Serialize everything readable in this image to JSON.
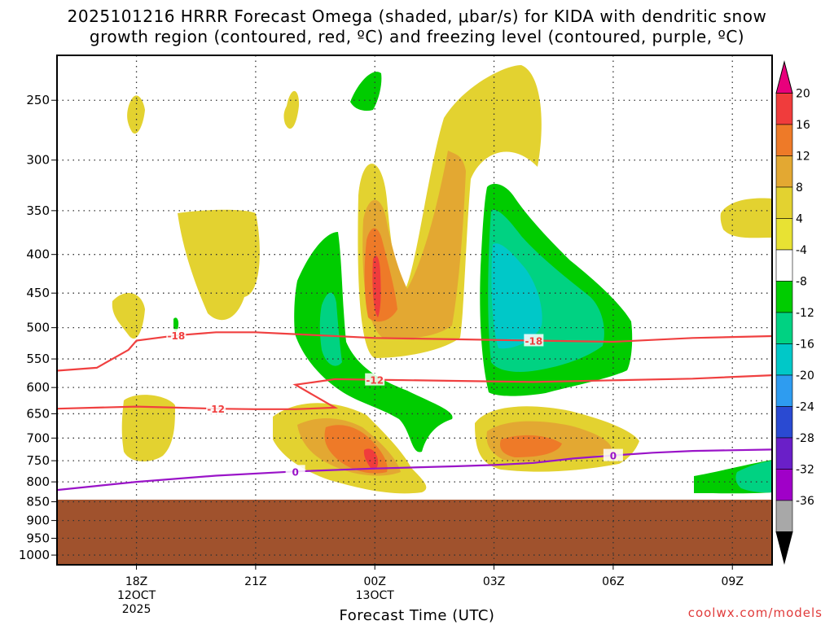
{
  "title_line1": "2025101216 HRRR Forecast Omega (shaded, μbar/s) for KIDA with dendritic snow",
  "title_line2": "growth region (contoured, red, ºC) and freezing level (contoured, purple, ºC)",
  "x_axis_label": "Forecast Time (UTC)",
  "credit": "coolwx.com/models",
  "chart_data": {
    "type": "heatmap",
    "x_ticks": [
      {
        "hour": 18,
        "lines": [
          "18Z",
          "12OCT",
          "2025"
        ]
      },
      {
        "hour": 21,
        "lines": [
          "21Z"
        ]
      },
      {
        "hour": 24,
        "lines": [
          "00Z",
          "13OCT"
        ]
      },
      {
        "hour": 27,
        "lines": [
          "03Z"
        ]
      },
      {
        "hour": 30,
        "lines": [
          "06Z"
        ]
      },
      {
        "hour": 33,
        "lines": [
          "09Z"
        ]
      }
    ],
    "xlim": [
      16,
      34
    ],
    "pressure_ticks": [
      250,
      300,
      350,
      400,
      450,
      500,
      550,
      600,
      650,
      700,
      750,
      800,
      850,
      900,
      950,
      1000
    ],
    "y_scale": "log-pressure",
    "colorbar": {
      "levels": [
        "20",
        "16",
        "12",
        "8",
        "4",
        "-4",
        "-8",
        "-12",
        "-16",
        "-20",
        "-24",
        "-28",
        "-32",
        "-36"
      ],
      "colors": [
        "#e8007c",
        "#f03c3c",
        "#ee7a28",
        "#e3a832",
        "#e3d230",
        "#e8e233",
        "#ffffff",
        "#00cc00",
        "#00d282",
        "#00c8c8",
        "#2e9cf0",
        "#2a4ad2",
        "#6a1fc8",
        "#a000c8",
        "#a8a8a8",
        "#000000"
      ]
    },
    "contours": [
      {
        "name": "dendritic -18C",
        "color": "#f04040",
        "label": "-18",
        "points": [
          [
            16,
            570
          ],
          [
            17,
            565
          ],
          [
            17.8,
            535
          ],
          [
            18,
            520
          ],
          [
            19,
            512
          ],
          [
            20,
            507
          ],
          [
            21,
            507
          ],
          [
            22,
            510
          ],
          [
            24,
            516
          ],
          [
            26,
            518
          ],
          [
            28,
            520
          ],
          [
            30,
            522
          ],
          [
            32,
            516
          ],
          [
            34,
            513
          ]
        ]
      },
      {
        "name": "dendritic -12C",
        "color": "#f04040",
        "label": "-12",
        "points": [
          [
            16,
            640
          ],
          [
            17,
            638
          ],
          [
            18,
            636
          ],
          [
            19,
            638
          ],
          [
            20,
            640
          ],
          [
            21,
            641
          ],
          [
            22,
            641
          ],
          [
            23,
            638
          ],
          [
            22,
            595
          ],
          [
            23,
            585
          ],
          [
            24,
            586
          ],
          [
            26,
            588
          ],
          [
            28,
            590
          ],
          [
            30,
            587
          ],
          [
            32,
            584
          ],
          [
            34,
            578
          ]
        ]
      },
      {
        "name": "freezing level 0C",
        "color": "#9a14c8",
        "label": "0",
        "points": [
          [
            16,
            820
          ],
          [
            17,
            810
          ],
          [
            18,
            800
          ],
          [
            20,
            785
          ],
          [
            22,
            775
          ],
          [
            24,
            768
          ],
          [
            26,
            763
          ],
          [
            27,
            760
          ],
          [
            28,
            755
          ],
          [
            29,
            745
          ],
          [
            30,
            738
          ],
          [
            31,
            732
          ],
          [
            32,
            728
          ],
          [
            34,
            725
          ]
        ]
      }
    ],
    "terrain_color": "#a0522d",
    "surface_pressure": 850
  }
}
